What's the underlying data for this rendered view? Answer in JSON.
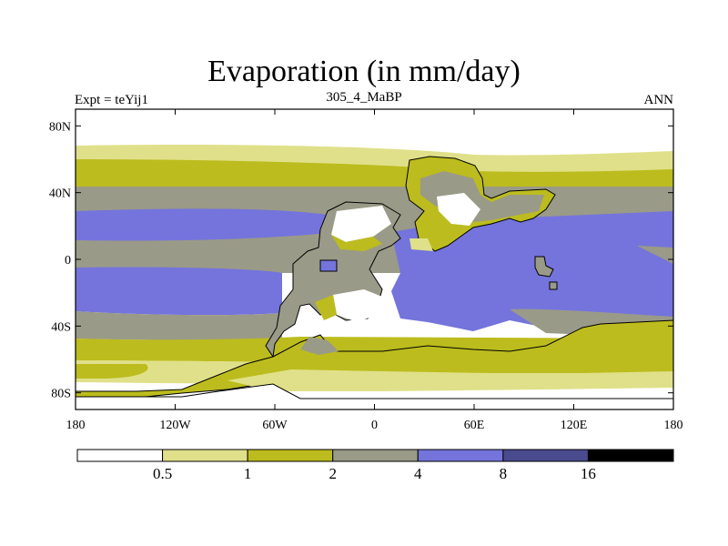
{
  "chart_data": {
    "type": "heatmap",
    "title": "Evaporation (in mm/day)",
    "left_string": "Expt = teYij1",
    "center_string": "305_4_MaBP",
    "right_string": "ANN",
    "projection": "cylindrical equidistant, longitude -180 to 180, latitude -90 to 90",
    "x_ticks": [
      "180",
      "120W",
      "60W",
      "0",
      "60E",
      "120E",
      "180"
    ],
    "x_tick_values": [
      -180,
      -120,
      -60,
      0,
      60,
      120,
      180
    ],
    "y_ticks": [
      "80N",
      "40N",
      "0",
      "40S",
      "80S"
    ],
    "y_tick_values": [
      80,
      40,
      0,
      -40,
      -80
    ],
    "xlim": [
      -180,
      180
    ],
    "ylim": [
      -90,
      90
    ],
    "colorbar": {
      "levels": [
        "0.5",
        "1",
        "2",
        "4",
        "8",
        "16"
      ],
      "colors": [
        "#ffffff",
        "#e0e08a",
        "#bcbc1e",
        "#9a9a88",
        "#7474dc",
        "#4a4a8e",
        "#000000"
      ]
    },
    "zonal_bands_description": [
      {
        "lat_range": [
          72,
          90
        ],
        "value_class": "<0.5"
      },
      {
        "lat_range": [
          62,
          72
        ],
        "value_class": "0.5-1"
      },
      {
        "lat_range": [
          45,
          62
        ],
        "value_class": "1-2"
      },
      {
        "lat_range": [
          30,
          45
        ],
        "value_class": "2-4"
      },
      {
        "lat_range": [
          10,
          30
        ],
        "value_class": "4-8"
      },
      {
        "lat_range": [
          -10,
          10
        ],
        "value_class": "2-4"
      },
      {
        "lat_range": [
          -35,
          -10
        ],
        "value_class": "4-8"
      },
      {
        "lat_range": [
          -45,
          -35
        ],
        "value_class": "2-4"
      },
      {
        "lat_range": [
          -58,
          -45
        ],
        "value_class": "1-2"
      },
      {
        "lat_range": [
          -70,
          -58
        ],
        "value_class": "0.5-1"
      },
      {
        "lat_range": [
          -90,
          -70
        ],
        "value_class": "<0.5"
      }
    ]
  }
}
